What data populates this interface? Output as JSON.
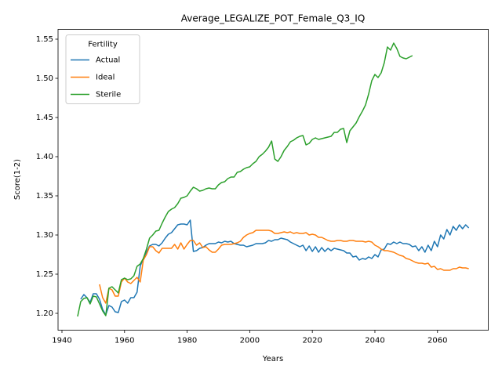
{
  "chart_data": {
    "type": "line",
    "title": "Average_LEGALIZE_POT_Female_Q3_IQ",
    "x_label": "Years",
    "y_label": "Score(1-2)",
    "legend_title": "Fertility",
    "legend_position": "upper left",
    "xlim": [
      1938.75,
      2076.25
    ],
    "ylim": [
      1.1785,
      1.5625
    ],
    "xticks": [
      1940,
      1960,
      1980,
      2000,
      2020,
      2040,
      2060
    ],
    "yticks": [
      {
        "value": 1.2,
        "label": "1.20"
      },
      {
        "value": 1.25,
        "label": "1.25"
      },
      {
        "value": 1.3,
        "label": "1.30"
      },
      {
        "value": 1.35,
        "label": "1.35"
      },
      {
        "value": 1.4,
        "label": "1.40"
      },
      {
        "value": 1.45,
        "label": "1.45"
      },
      {
        "value": 1.5,
        "label": "1.50"
      },
      {
        "value": 1.55,
        "label": "1.55"
      }
    ],
    "x": [
      1945,
      1946,
      1947,
      1948,
      1949,
      1950,
      1951,
      1952,
      1953,
      1954,
      1955,
      1956,
      1957,
      1958,
      1959,
      1960,
      1961,
      1962,
      1963,
      1964,
      1965,
      1966,
      1967,
      1968,
      1969,
      1970,
      1971,
      1972,
      1973,
      1974,
      1975,
      1976,
      1977,
      1978,
      1979,
      1980,
      1981,
      1982,
      1983,
      1984,
      1985,
      1986,
      1987,
      1988,
      1989,
      1990,
      1991,
      1992,
      1993,
      1994,
      1995,
      1996,
      1997,
      1998,
      1999,
      2000,
      2001,
      2002,
      2003,
      2004,
      2005,
      2006,
      2007,
      2008,
      2009,
      2010,
      2011,
      2012,
      2013,
      2014,
      2015,
      2016,
      2017,
      2018,
      2019,
      2020,
      2021,
      2022,
      2023,
      2024,
      2025,
      2026,
      2027,
      2028,
      2029,
      2030,
      2031,
      2032,
      2033,
      2034,
      2035,
      2036,
      2037,
      2038,
      2039,
      2040,
      2041,
      2042,
      2043,
      2044,
      2045,
      2046,
      2047,
      2048,
      2049,
      2050,
      2051,
      2052,
      2053,
      2054,
      2055,
      2056,
      2057,
      2058,
      2059,
      2060,
      2061,
      2062,
      2063,
      2064,
      2065,
      2066,
      2067,
      2068,
      2069,
      2070
    ],
    "series": [
      {
        "name": "Actual",
        "color": "#1f77b4",
        "values": [
          null,
          1.218,
          1.224,
          1.22,
          1.214,
          1.225,
          1.225,
          1.218,
          1.205,
          1.198,
          1.21,
          1.208,
          1.202,
          1.201,
          1.215,
          1.217,
          1.213,
          1.22,
          1.22,
          1.227,
          1.26,
          1.27,
          1.278,
          1.286,
          1.288,
          1.288,
          1.286,
          1.29,
          1.296,
          1.301,
          1.303,
          1.308,
          1.313,
          1.314,
          1.314,
          1.313,
          1.319,
          1.279,
          1.28,
          1.283,
          1.284,
          1.287,
          1.289,
          1.289,
          1.289,
          1.291,
          1.29,
          1.292,
          1.291,
          1.292,
          1.289,
          1.288,
          1.287,
          1.287,
          1.285,
          1.286,
          1.287,
          1.289,
          1.289,
          1.289,
          1.29,
          1.293,
          1.292,
          1.294,
          1.294,
          1.296,
          1.295,
          1.294,
          1.291,
          1.289,
          1.287,
          1.285,
          1.287,
          1.28,
          1.286,
          1.279,
          1.285,
          1.278,
          1.284,
          1.279,
          1.283,
          1.28,
          1.283,
          1.282,
          1.281,
          1.28,
          1.277,
          1.277,
          1.272,
          1.273,
          1.268,
          1.27,
          1.269,
          1.272,
          1.27,
          1.275,
          1.272,
          1.281,
          1.282,
          1.289,
          1.288,
          1.291,
          1.289,
          1.291,
          1.289,
          1.289,
          1.288,
          1.285,
          1.286,
          1.28,
          1.285,
          1.278,
          1.287,
          1.28,
          1.292,
          1.285,
          1.3,
          1.295,
          1.307,
          1.3,
          1.311,
          1.306,
          1.313,
          1.308,
          1.313,
          1.309
        ]
      },
      {
        "name": "Ideal",
        "color": "#ff7f0e",
        "values": [
          null,
          null,
          null,
          null,
          null,
          null,
          null,
          1.237,
          1.22,
          1.213,
          1.232,
          1.23,
          1.222,
          1.222,
          1.24,
          1.245,
          1.24,
          1.238,
          1.242,
          1.246,
          1.24,
          1.268,
          1.275,
          1.285,
          1.285,
          1.28,
          1.277,
          1.283,
          1.283,
          1.283,
          1.283,
          1.288,
          1.282,
          1.29,
          1.282,
          1.288,
          1.293,
          1.293,
          1.287,
          1.29,
          1.284,
          1.285,
          1.281,
          1.278,
          1.278,
          1.282,
          1.287,
          1.288,
          1.288,
          1.288,
          1.289,
          1.29,
          1.292,
          1.297,
          1.3,
          1.302,
          1.303,
          1.306,
          1.306,
          1.306,
          1.306,
          1.306,
          1.305,
          1.302,
          1.302,
          1.303,
          1.304,
          1.303,
          1.304,
          1.302,
          1.303,
          1.302,
          1.302,
          1.303,
          1.3,
          1.301,
          1.3,
          1.297,
          1.297,
          1.295,
          1.293,
          1.292,
          1.292,
          1.293,
          1.293,
          1.292,
          1.292,
          1.293,
          1.293,
          1.292,
          1.292,
          1.292,
          1.291,
          1.292,
          1.291,
          1.287,
          1.285,
          1.282,
          1.28,
          1.28,
          1.279,
          1.278,
          1.276,
          1.274,
          1.273,
          1.27,
          1.269,
          1.267,
          1.265,
          1.264,
          1.264,
          1.263,
          1.264,
          1.259,
          1.26,
          1.256,
          1.257,
          1.255,
          1.255,
          1.255,
          1.257,
          1.257,
          1.259,
          1.258,
          1.258,
          1.257
        ]
      },
      {
        "name": "Sterile",
        "color": "#2ca02c",
        "values": [
          1.196,
          1.215,
          1.219,
          1.22,
          1.212,
          1.222,
          1.221,
          1.212,
          1.203,
          1.197,
          1.232,
          1.234,
          1.23,
          1.226,
          1.243,
          1.245,
          1.243,
          1.244,
          1.248,
          1.26,
          1.263,
          1.27,
          1.282,
          1.296,
          1.3,
          1.305,
          1.306,
          1.315,
          1.323,
          1.33,
          1.333,
          1.335,
          1.34,
          1.347,
          1.348,
          1.35,
          1.356,
          1.361,
          1.359,
          1.356,
          1.357,
          1.359,
          1.36,
          1.359,
          1.359,
          1.364,
          1.367,
          1.368,
          1.372,
          1.374,
          1.374,
          1.38,
          1.381,
          1.384,
          1.386,
          1.387,
          1.391,
          1.394,
          1.4,
          1.403,
          1.407,
          1.412,
          1.42,
          1.397,
          1.394,
          1.4,
          1.408,
          1.413,
          1.419,
          1.421,
          1.424,
          1.426,
          1.427,
          1.415,
          1.417,
          1.422,
          1.424,
          1.422,
          1.423,
          1.424,
          1.425,
          1.426,
          1.431,
          1.431,
          1.435,
          1.436,
          1.418,
          1.433,
          1.438,
          1.443,
          1.451,
          1.458,
          1.466,
          1.48,
          1.497,
          1.505,
          1.501,
          1.507,
          1.52,
          1.54,
          1.536,
          1.545,
          1.538,
          1.528,
          1.526,
          1.525,
          1.527,
          1.529,
          null,
          null,
          null,
          null,
          null,
          null,
          null,
          null,
          null,
          null,
          null,
          null,
          null,
          null,
          null,
          null,
          null,
          null
        ]
      }
    ]
  }
}
